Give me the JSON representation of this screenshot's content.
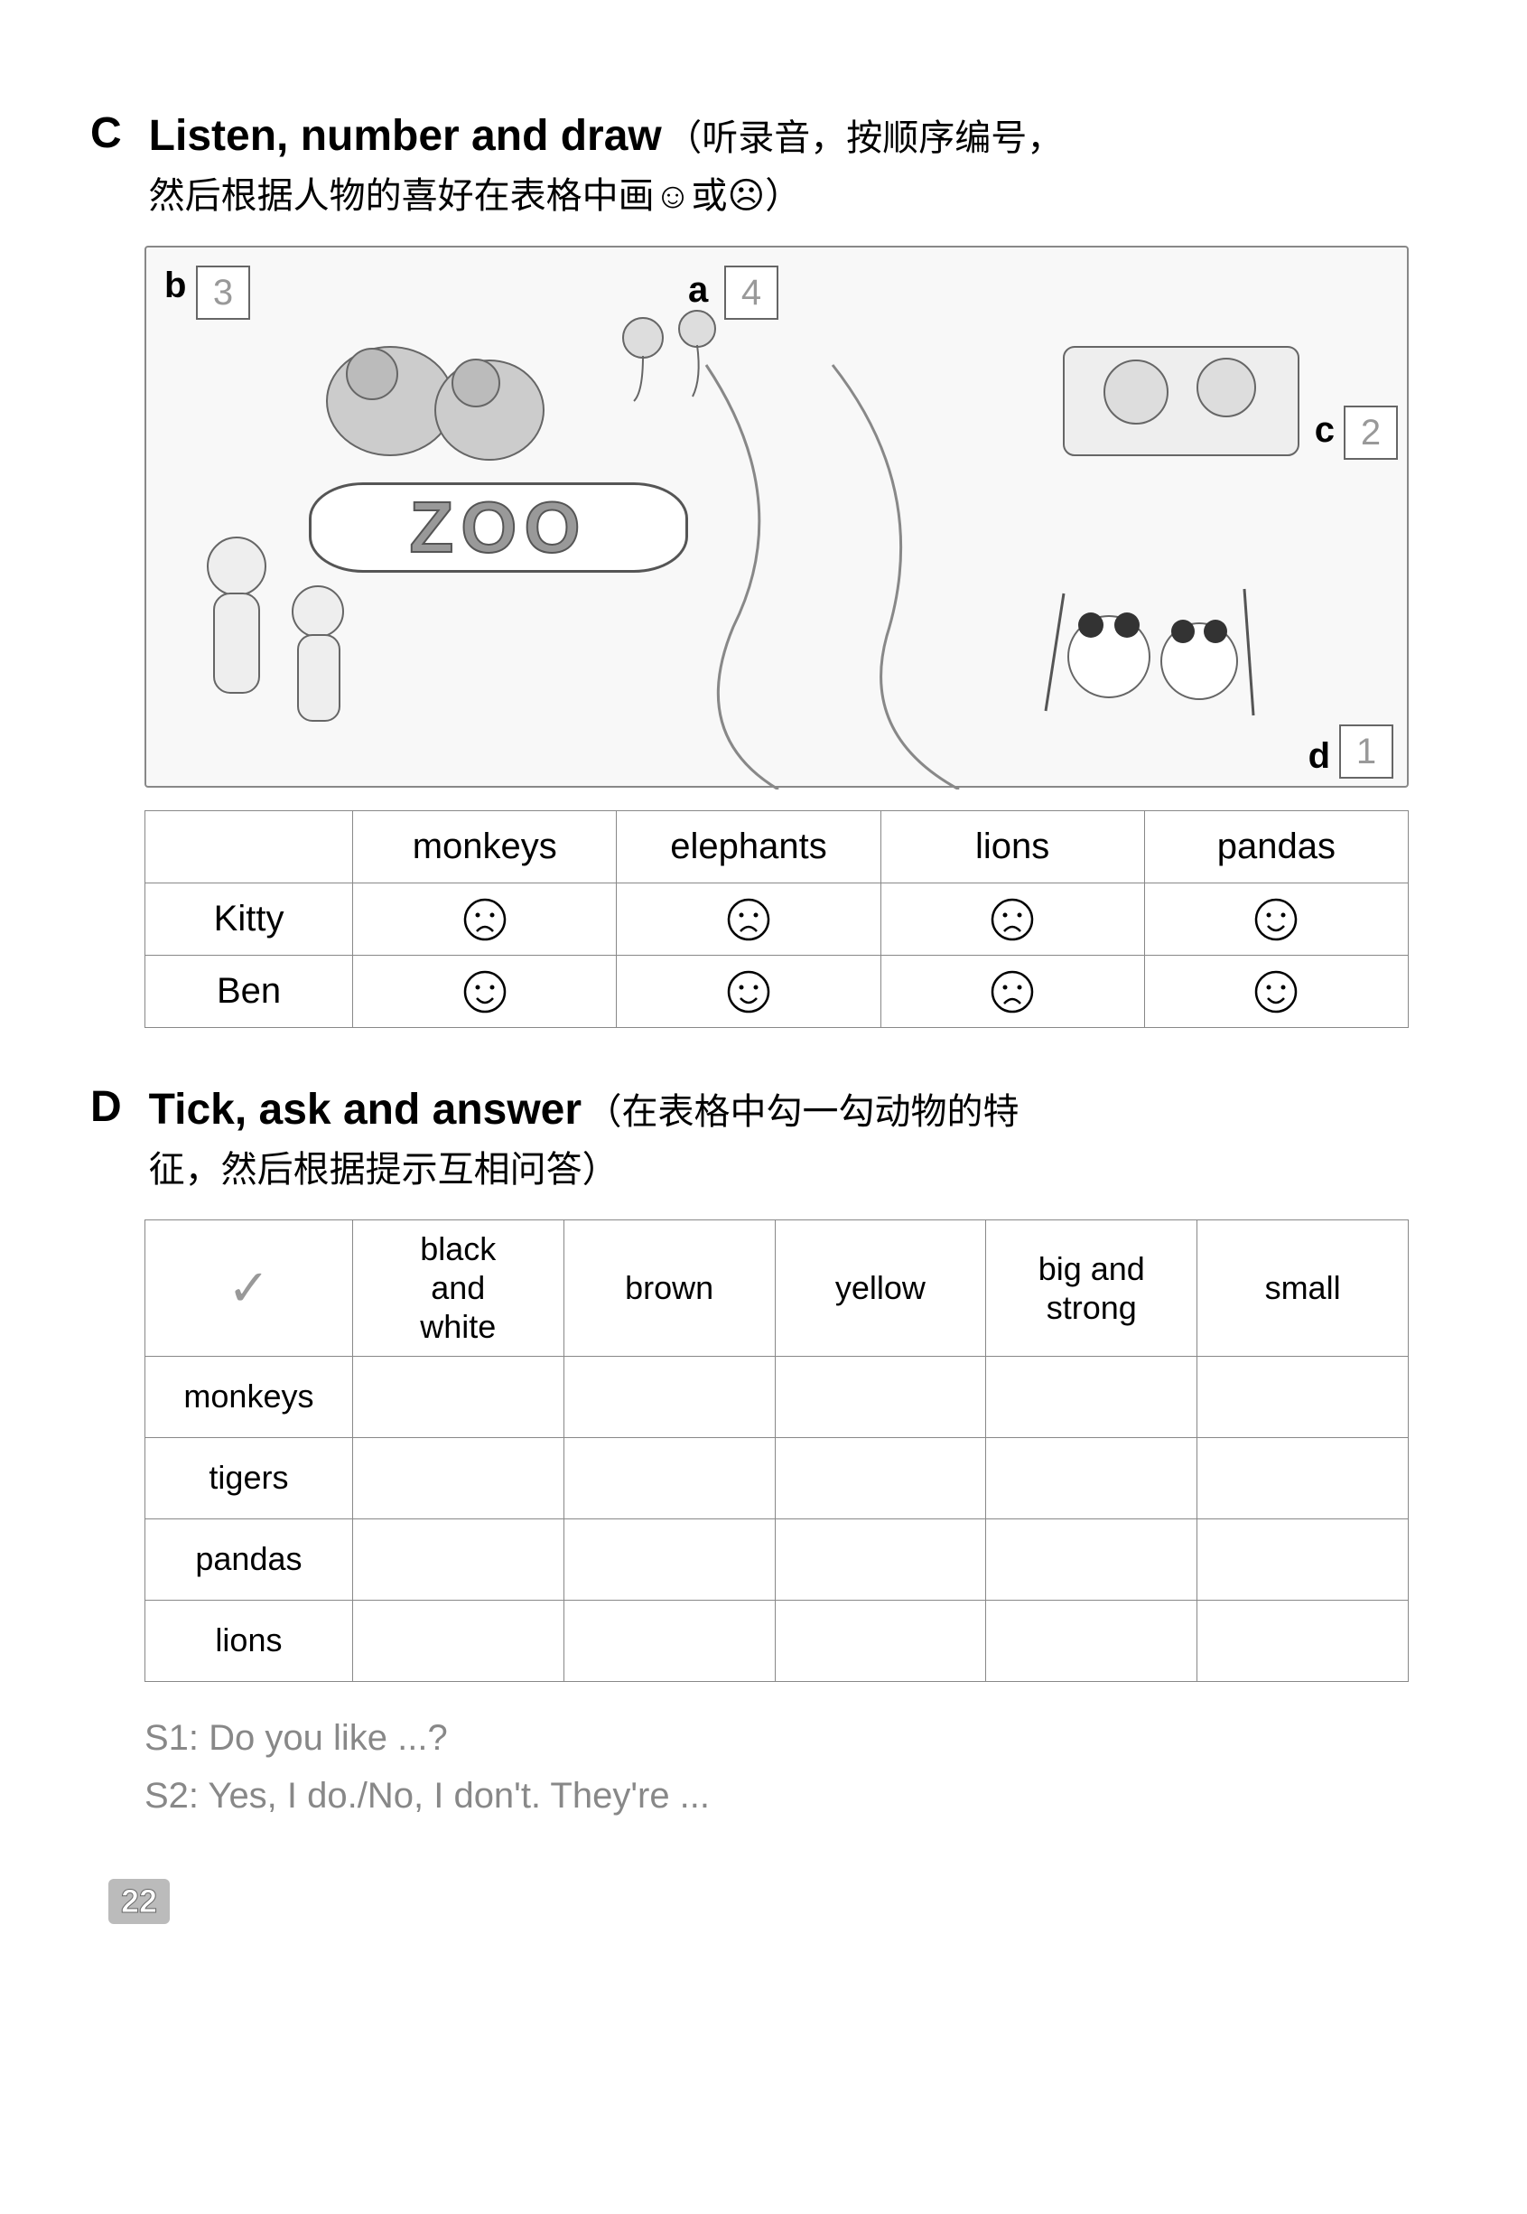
{
  "sectionC": {
    "letter": "C",
    "title_en": "Listen, number and draw",
    "title_cn_part1": "（听录音，按顺序编号，",
    "title_cn_part2": "然后根据人物的喜好在表格中画☺或☹）",
    "zoo_label": "ZOO",
    "boxes": {
      "a": {
        "label": "a",
        "value": "4"
      },
      "b": {
        "label": "b",
        "value": "3"
      },
      "c": {
        "label": "c",
        "value": "2"
      },
      "d": {
        "label": "d",
        "value": "1"
      }
    },
    "table": {
      "headers": [
        "",
        "monkeys",
        "elephants",
        "lions",
        "pandas"
      ],
      "rows": [
        {
          "name": "Kitty",
          "faces": [
            "sad",
            "sad",
            "sad",
            "happy"
          ]
        },
        {
          "name": "Ben",
          "faces": [
            "happy",
            "happy",
            "sad",
            "happy"
          ]
        }
      ]
    }
  },
  "sectionD": {
    "letter": "D",
    "title_en": "Tick, ask and answer",
    "title_cn_part1": "（在表格中勾一勾动物的特",
    "title_cn_part2": "征，然后根据提示互相问答）",
    "table": {
      "check_header": "✓",
      "headers": [
        "black and white",
        "brown",
        "yellow",
        "big and strong",
        "small"
      ],
      "rows": [
        "monkeys",
        "tigers",
        "pandas",
        "lions"
      ]
    },
    "dialogue": {
      "s1": "S1: Do you like ...?",
      "s2": "S2: Yes, I do./No, I don't. They're ..."
    }
  },
  "page_number": "22",
  "colors": {
    "text": "#000000",
    "border": "#888888",
    "answer": "#999999",
    "background": "#ffffff"
  }
}
